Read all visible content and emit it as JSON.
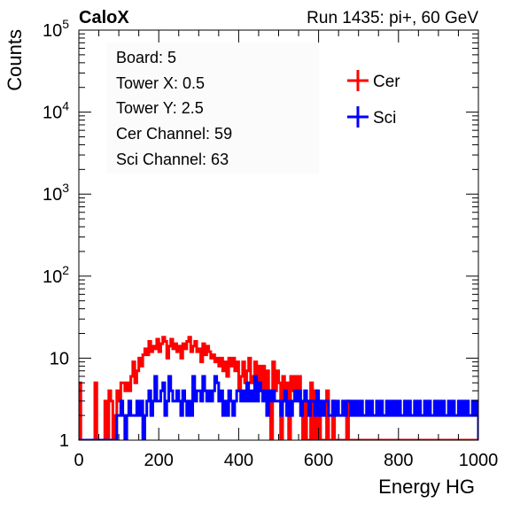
{
  "chart_data": {
    "type": "line",
    "title_left": "CaloX",
    "title_right": "Run 1435: pi+, 60 GeV",
    "xlabel": "Energy HG",
    "ylabel": "Counts",
    "xlim": [
      0,
      1000
    ],
    "ylim": [
      1,
      100000
    ],
    "yscale": "log",
    "grid": false,
    "x_ticks": [
      0,
      200,
      400,
      600,
      800,
      1000
    ],
    "y_ticks": [
      {
        "value": 1,
        "base": "1",
        "exp": ""
      },
      {
        "value": 10,
        "base": "10",
        "exp": ""
      },
      {
        "value": 100,
        "base": "10",
        "exp": "2"
      },
      {
        "value": 1000,
        "base": "10",
        "exp": "3"
      },
      {
        "value": 10000,
        "base": "10",
        "exp": "4"
      },
      {
        "value": 100000,
        "base": "10",
        "exp": "5"
      }
    ],
    "info_box": [
      "Board: 5",
      "Tower X: 0.5",
      "Tower Y: 2.5",
      "Cer Channel: 59",
      "Sci Channel: 63"
    ],
    "legend_position": "top-right",
    "series": [
      {
        "name": "Cer",
        "color": "#ff0000",
        "bin_width": 5,
        "x_start": 0,
        "values": [
          5,
          1,
          1,
          1,
          1,
          1,
          1,
          1,
          5,
          1,
          1,
          1,
          1,
          3,
          1,
          4,
          3,
          1,
          2,
          4,
          3,
          5,
          5,
          4,
          5,
          4,
          6,
          9,
          5,
          7,
          10,
          8,
          11,
          13,
          11,
          16,
          12,
          14,
          13,
          17,
          12,
          15,
          18,
          16,
          10,
          14,
          17,
          13,
          15,
          12,
          14,
          10,
          15,
          13,
          16,
          18,
          12,
          14,
          16,
          12,
          13,
          9,
          15,
          11,
          14,
          12,
          10,
          11,
          9,
          10,
          8,
          10,
          7,
          9,
          6,
          10,
          8,
          10,
          7,
          9,
          4,
          6,
          9,
          5,
          7,
          10,
          5,
          6,
          9,
          4,
          8,
          4,
          8,
          4,
          7,
          4,
          1,
          9,
          4,
          7,
          5,
          1,
          6,
          3,
          5,
          1,
          6,
          4,
          6,
          3,
          6,
          2,
          1,
          3,
          1,
          1,
          5,
          1,
          4,
          1,
          3,
          1,
          1,
          1,
          4,
          1,
          1,
          3,
          1,
          1,
          1,
          1,
          1,
          1,
          3,
          1,
          1,
          1,
          1,
          1,
          1,
          1,
          1,
          1,
          1,
          1,
          1,
          1,
          1,
          1,
          1,
          1,
          1,
          1,
          1,
          1,
          1,
          1,
          1,
          1,
          1,
          1,
          1,
          1,
          1,
          1,
          1,
          1,
          1,
          1,
          1,
          1,
          1,
          1,
          1,
          1,
          1,
          1,
          1,
          1,
          1,
          1,
          1,
          1,
          1,
          1,
          1,
          1,
          1,
          1,
          1,
          1,
          1,
          1,
          1,
          1,
          1,
          1,
          1,
          1
        ]
      },
      {
        "name": "Sci",
        "color": "#0000ff",
        "bin_width": 5,
        "x_start": 0,
        "values": [
          1,
          1,
          1,
          1,
          1,
          1,
          1,
          1,
          1,
          1,
          1,
          1,
          1,
          1,
          1,
          1,
          1,
          1,
          1,
          2,
          2,
          3,
          2,
          1,
          2,
          3,
          2,
          2,
          2,
          3,
          2,
          3,
          1,
          2,
          3,
          4,
          2,
          3,
          6,
          3,
          3,
          4,
          5,
          2,
          3,
          6,
          4,
          3,
          3,
          4,
          3,
          2,
          4,
          3,
          2,
          3,
          2,
          6,
          3,
          4,
          4,
          3,
          6,
          4,
          3,
          4,
          3,
          4,
          6,
          5,
          3,
          4,
          2,
          3,
          2,
          4,
          3,
          2,
          3,
          4,
          4,
          3,
          4,
          3,
          5,
          3,
          4,
          3,
          6,
          3,
          5,
          4,
          3,
          4,
          2,
          4,
          3,
          4,
          3,
          3,
          3,
          2,
          3,
          4,
          2,
          3,
          2,
          3,
          4,
          3,
          4,
          2,
          3,
          4,
          3,
          2,
          3,
          3,
          2,
          4,
          2,
          3,
          2,
          3,
          3,
          2,
          2,
          3,
          2,
          3,
          2,
          2,
          3,
          2,
          3,
          3,
          2,
          3,
          2,
          3,
          2,
          3,
          2,
          2,
          3,
          2,
          3,
          2,
          2,
          3,
          2,
          3,
          2,
          2,
          3,
          2,
          3,
          2,
          3,
          2,
          3,
          2,
          2,
          3,
          2,
          3,
          2,
          2,
          3,
          2,
          3,
          2,
          2,
          3,
          2,
          3,
          2,
          2,
          3,
          2,
          3,
          2,
          3,
          2,
          2,
          3,
          2,
          3,
          2,
          2,
          3,
          2,
          3,
          2,
          3,
          2,
          2,
          3,
          2,
          3
        ]
      }
    ]
  }
}
